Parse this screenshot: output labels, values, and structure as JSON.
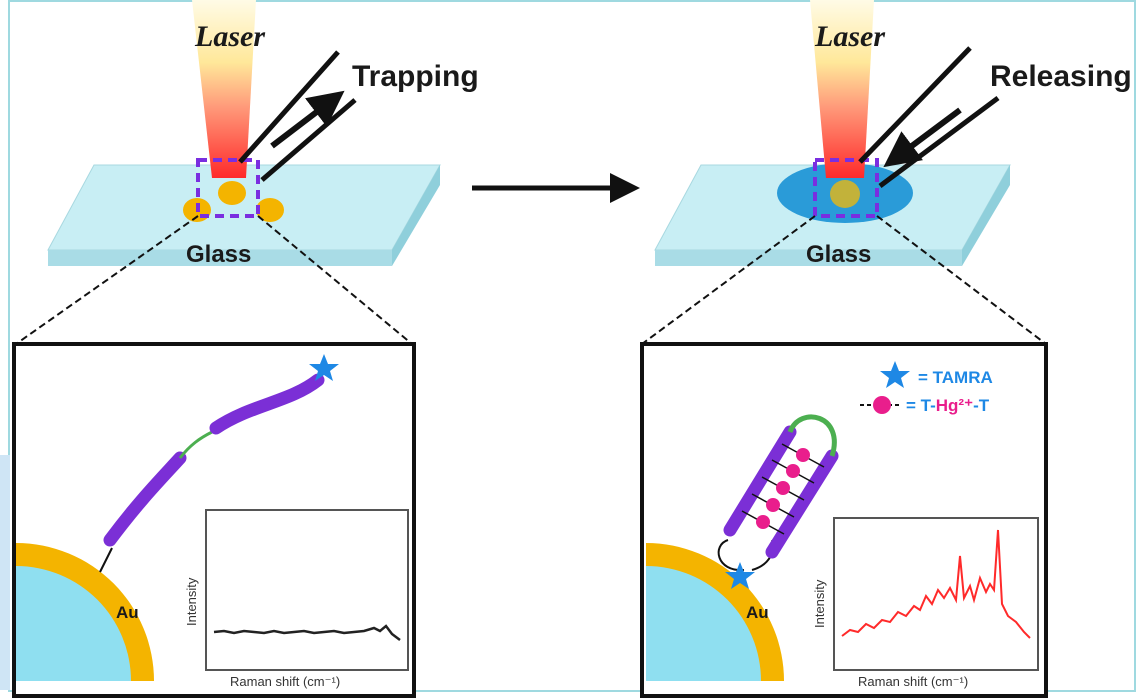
{
  "left_panel": {
    "laser_label": "Laser",
    "action_label": "Trapping",
    "substrate_label": "Glass",
    "particle_label": "Au",
    "inset": {
      "ylabel": "Intensity",
      "xlabel": "Raman shift (cm⁻¹)"
    }
  },
  "right_panel": {
    "laser_label": "Laser",
    "action_label": "Releasing",
    "substrate_label": "Glass",
    "particle_label": "Au",
    "legend": {
      "tamra": "= TAMRA",
      "thg_prefix": "= T-",
      "thg_hg": "Hg²⁺",
      "thg_suffix": "-T"
    },
    "inset": {
      "ylabel": "Intensity",
      "xlabel": "Raman shift (cm⁻¹)"
    }
  },
  "colors": {
    "glass": "#b7e4ec",
    "gold": "#f4b400",
    "core": "#8fdff0",
    "dna": "#7b2fd6",
    "loop": "#4caf50",
    "tamra": "#1e88e5",
    "hg": "#e91e8c",
    "spectrum_flat": "#222222",
    "spectrum_peaks": "#ff2a2a",
    "trap_box": "#7a2ee0"
  },
  "icons": [
    "arrow-right-icon",
    "star-icon"
  ]
}
